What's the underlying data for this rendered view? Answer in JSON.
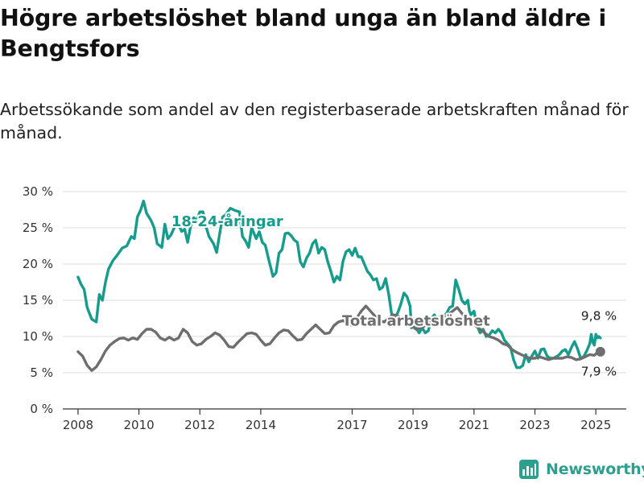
{
  "title": "Högre arbetslöshet bland unga än bland äldre i Bengtsfors",
  "subtitle": "Arbetssökande som andel av den registerbaserade arbetskraften månad för månad.",
  "logo": {
    "text": "Newsworthy"
  },
  "colors": {
    "youth": "#169c8c",
    "total": "#6e6e6e",
    "grid": "#dcdcdc",
    "axis": "#333333"
  },
  "chart_data": {
    "type": "line",
    "title": "Högre arbetslöshet bland unga än bland äldre i Bengtsfors",
    "subtitle": "Arbetssökande som andel av den registerbaserade arbetskraften månad för månad.",
    "xlim": [
      2007.5,
      2026
    ],
    "ylim": [
      0,
      30
    ],
    "x_ticks": [
      2008,
      2010,
      2012,
      2014,
      2017,
      2019,
      2021,
      2023,
      2025
    ],
    "x_tick_labels": [
      "2008",
      "2010",
      "2012",
      "2014",
      "2017",
      "2019",
      "2021",
      "2023",
      "2025"
    ],
    "y_ticks": [
      0,
      5,
      10,
      15,
      20,
      25,
      30
    ],
    "y_tick_labels": [
      "0 %",
      "5 %",
      "10 %",
      "15 %",
      "20 %",
      "25 %",
      "30 %"
    ],
    "grid": "horizontal",
    "series": [
      {
        "name": "18-24-åringar",
        "label_at": [
          2012.9,
          25.2
        ],
        "end_label": "9,8 %",
        "values": [
          [
            2008.0,
            18.2
          ],
          [
            2008.1,
            17.2
          ],
          [
            2008.2,
            16.5
          ],
          [
            2008.3,
            14.0
          ],
          [
            2008.45,
            12.4
          ],
          [
            2008.6,
            12.0
          ],
          [
            2008.7,
            15.8
          ],
          [
            2008.8,
            15.0
          ],
          [
            2008.9,
            17.5
          ],
          [
            2009.0,
            19.3
          ],
          [
            2009.15,
            20.5
          ],
          [
            2009.3,
            21.3
          ],
          [
            2009.45,
            22.2
          ],
          [
            2009.6,
            22.5
          ],
          [
            2009.75,
            23.8
          ],
          [
            2009.85,
            23.5
          ],
          [
            2009.95,
            26.5
          ],
          [
            2010.05,
            27.4
          ],
          [
            2010.15,
            28.7
          ],
          [
            2010.25,
            27.0
          ],
          [
            2010.4,
            26.0
          ],
          [
            2010.5,
            25.0
          ],
          [
            2010.6,
            22.8
          ],
          [
            2010.75,
            22.3
          ],
          [
            2010.85,
            25.5
          ],
          [
            2010.95,
            23.5
          ],
          [
            2011.05,
            24.0
          ],
          [
            2011.2,
            25.4
          ],
          [
            2011.3,
            25.5
          ],
          [
            2011.4,
            24.5
          ],
          [
            2011.5,
            24.8
          ],
          [
            2011.6,
            23.0
          ],
          [
            2011.7,
            25.3
          ],
          [
            2011.8,
            26.4
          ],
          [
            2011.9,
            26.0
          ],
          [
            2012.0,
            27.2
          ],
          [
            2012.1,
            27.2
          ],
          [
            2012.2,
            25.2
          ],
          [
            2012.3,
            23.8
          ],
          [
            2012.45,
            22.8
          ],
          [
            2012.55,
            21.6
          ],
          [
            2012.65,
            24.2
          ],
          [
            2012.75,
            26.5
          ],
          [
            2012.85,
            26.8
          ],
          [
            2013.0,
            27.7
          ],
          [
            2013.15,
            27.4
          ],
          [
            2013.3,
            27.2
          ],
          [
            2013.4,
            23.8
          ],
          [
            2013.5,
            23.2
          ],
          [
            2013.6,
            22.3
          ],
          [
            2013.7,
            25.0
          ],
          [
            2013.85,
            23.5
          ],
          [
            2013.95,
            24.5
          ],
          [
            2014.05,
            23.0
          ],
          [
            2014.15,
            22.6
          ],
          [
            2014.25,
            20.8
          ],
          [
            2014.4,
            18.3
          ],
          [
            2014.5,
            18.8
          ],
          [
            2014.6,
            21.5
          ],
          [
            2014.7,
            22.0
          ],
          [
            2014.8,
            24.2
          ],
          [
            2014.9,
            24.3
          ],
          [
            2015.0,
            23.9
          ],
          [
            2015.1,
            23.3
          ],
          [
            2015.2,
            23.0
          ],
          [
            2015.3,
            20.3
          ],
          [
            2015.4,
            19.6
          ],
          [
            2015.5,
            20.8
          ],
          [
            2015.6,
            21.5
          ],
          [
            2015.7,
            22.8
          ],
          [
            2015.8,
            23.3
          ],
          [
            2015.9,
            21.5
          ],
          [
            2016.0,
            22.3
          ],
          [
            2016.1,
            22.0
          ],
          [
            2016.2,
            20.3
          ],
          [
            2016.3,
            19.0
          ],
          [
            2016.4,
            17.5
          ],
          [
            2016.5,
            18.3
          ],
          [
            2016.6,
            17.8
          ],
          [
            2016.7,
            20.4
          ],
          [
            2016.8,
            21.7
          ],
          [
            2016.9,
            22.0
          ],
          [
            2017.0,
            21.2
          ],
          [
            2017.1,
            22.2
          ],
          [
            2017.2,
            21.0
          ],
          [
            2017.3,
            21.0
          ],
          [
            2017.4,
            20.0
          ],
          [
            2017.5,
            19.0
          ],
          [
            2017.6,
            18.5
          ],
          [
            2017.7,
            17.8
          ],
          [
            2017.8,
            18.0
          ],
          [
            2017.9,
            16.5
          ],
          [
            2018.0,
            16.8
          ],
          [
            2018.1,
            18.0
          ],
          [
            2018.2,
            15.8
          ],
          [
            2018.3,
            13.0
          ],
          [
            2018.4,
            12.5
          ],
          [
            2018.5,
            13.3
          ],
          [
            2018.6,
            14.5
          ],
          [
            2018.7,
            16.0
          ],
          [
            2018.8,
            15.5
          ],
          [
            2018.9,
            14.2
          ],
          [
            2018.95,
            11.2
          ],
          [
            2019.0,
            12.5
          ],
          [
            2019.1,
            11.2
          ],
          [
            2019.2,
            10.5
          ],
          [
            2019.3,
            11.2
          ],
          [
            2019.4,
            10.5
          ],
          [
            2019.5,
            10.8
          ],
          [
            2019.6,
            12.5
          ],
          [
            2019.7,
            13.0
          ],
          [
            2019.8,
            12.0
          ],
          [
            2019.9,
            13.0
          ],
          [
            2020.0,
            12.8
          ],
          [
            2020.1,
            13.2
          ],
          [
            2020.2,
            14.0
          ],
          [
            2020.3,
            14.2
          ],
          [
            2020.4,
            17.8
          ],
          [
            2020.5,
            16.5
          ],
          [
            2020.6,
            15.0
          ],
          [
            2020.7,
            14.5
          ],
          [
            2020.8,
            15.0
          ],
          [
            2020.85,
            13.5
          ],
          [
            2020.9,
            13.0
          ],
          [
            2021.0,
            13.5
          ],
          [
            2021.1,
            11.5
          ],
          [
            2021.2,
            10.5
          ],
          [
            2021.3,
            11.0
          ],
          [
            2021.4,
            10.0
          ],
          [
            2021.5,
            10.2
          ],
          [
            2021.6,
            10.8
          ],
          [
            2021.7,
            10.5
          ],
          [
            2021.8,
            11.0
          ],
          [
            2021.9,
            10.5
          ],
          [
            2022.0,
            9.5
          ],
          [
            2022.1,
            9.0
          ],
          [
            2022.2,
            8.5
          ],
          [
            2022.3,
            6.8
          ],
          [
            2022.4,
            5.7
          ],
          [
            2022.5,
            5.7
          ],
          [
            2022.6,
            6.0
          ],
          [
            2022.7,
            7.5
          ],
          [
            2022.8,
            6.5
          ],
          [
            2022.9,
            7.3
          ],
          [
            2023.0,
            8.0
          ],
          [
            2023.1,
            7.0
          ],
          [
            2023.2,
            8.2
          ],
          [
            2023.3,
            8.3
          ],
          [
            2023.4,
            7.3
          ],
          [
            2023.5,
            7.0
          ],
          [
            2023.6,
            7.0
          ],
          [
            2023.7,
            7.2
          ],
          [
            2023.8,
            7.5
          ],
          [
            2023.9,
            8.0
          ],
          [
            2024.0,
            8.2
          ],
          [
            2024.1,
            7.5
          ],
          [
            2024.2,
            8.5
          ],
          [
            2024.3,
            9.3
          ],
          [
            2024.4,
            8.3
          ],
          [
            2024.5,
            7.0
          ],
          [
            2024.6,
            7.2
          ],
          [
            2024.7,
            8.0
          ],
          [
            2024.8,
            9.0
          ],
          [
            2024.85,
            10.3
          ],
          [
            2024.9,
            9.2
          ],
          [
            2024.95,
            8.8
          ],
          [
            2025.0,
            10.3
          ],
          [
            2025.05,
            9.8
          ],
          [
            2025.1,
            10.0
          ],
          [
            2025.15,
            9.8
          ]
        ]
      },
      {
        "name": "Total arbetslöshet",
        "label_at": [
          2019.1,
          11.5
        ],
        "end_label": "7,9 %",
        "values": [
          [
            2008.0,
            7.9
          ],
          [
            2008.15,
            7.3
          ],
          [
            2008.3,
            6.0
          ],
          [
            2008.45,
            5.3
          ],
          [
            2008.6,
            5.8
          ],
          [
            2008.75,
            6.8
          ],
          [
            2008.9,
            8.0
          ],
          [
            2009.05,
            8.8
          ],
          [
            2009.2,
            9.3
          ],
          [
            2009.35,
            9.7
          ],
          [
            2009.5,
            9.8
          ],
          [
            2009.65,
            9.5
          ],
          [
            2009.8,
            9.8
          ],
          [
            2009.95,
            9.6
          ],
          [
            2010.1,
            10.4
          ],
          [
            2010.25,
            11.0
          ],
          [
            2010.4,
            11.0
          ],
          [
            2010.55,
            10.6
          ],
          [
            2010.7,
            9.8
          ],
          [
            2010.85,
            9.5
          ],
          [
            2011.0,
            9.9
          ],
          [
            2011.15,
            9.5
          ],
          [
            2011.3,
            9.8
          ],
          [
            2011.45,
            11.0
          ],
          [
            2011.6,
            10.5
          ],
          [
            2011.75,
            9.3
          ],
          [
            2011.9,
            8.8
          ],
          [
            2012.05,
            9.0
          ],
          [
            2012.2,
            9.6
          ],
          [
            2012.35,
            10.0
          ],
          [
            2012.5,
            10.5
          ],
          [
            2012.65,
            10.2
          ],
          [
            2012.8,
            9.5
          ],
          [
            2012.95,
            8.6
          ],
          [
            2013.1,
            8.5
          ],
          [
            2013.25,
            9.2
          ],
          [
            2013.4,
            9.8
          ],
          [
            2013.55,
            10.4
          ],
          [
            2013.7,
            10.5
          ],
          [
            2013.85,
            10.3
          ],
          [
            2014.0,
            9.5
          ],
          [
            2014.15,
            8.8
          ],
          [
            2014.3,
            9.0
          ],
          [
            2014.45,
            9.8
          ],
          [
            2014.6,
            10.5
          ],
          [
            2014.75,
            10.9
          ],
          [
            2014.9,
            10.8
          ],
          [
            2015.05,
            10.1
          ],
          [
            2015.2,
            9.5
          ],
          [
            2015.35,
            9.6
          ],
          [
            2015.5,
            10.4
          ],
          [
            2015.65,
            11.0
          ],
          [
            2015.8,
            11.6
          ],
          [
            2015.95,
            11.0
          ],
          [
            2016.1,
            10.4
          ],
          [
            2016.25,
            10.5
          ],
          [
            2016.4,
            11.5
          ],
          [
            2016.55,
            12.0
          ],
          [
            2016.7,
            12.2
          ],
          [
            2016.85,
            11.8
          ],
          [
            2017.0,
            11.5
          ],
          [
            2017.15,
            12.5
          ],
          [
            2017.3,
            13.5
          ],
          [
            2017.45,
            14.2
          ],
          [
            2017.6,
            13.5
          ],
          [
            2017.75,
            12.8
          ],
          [
            2017.9,
            12.2
          ],
          [
            2018.05,
            12.0
          ],
          [
            2018.2,
            12.5
          ],
          [
            2018.35,
            13.0
          ],
          [
            2018.5,
            12.8
          ],
          [
            2018.65,
            12.5
          ],
          [
            2018.8,
            12.0
          ],
          [
            2018.95,
            11.5
          ],
          [
            2019.1,
            11.0
          ],
          [
            2019.25,
            11.2
          ],
          [
            2019.4,
            11.5
          ],
          [
            2019.55,
            11.8
          ],
          [
            2019.7,
            12.2
          ],
          [
            2019.85,
            12.5
          ],
          [
            2020.0,
            12.5
          ],
          [
            2020.15,
            13.0
          ],
          [
            2020.3,
            13.5
          ],
          [
            2020.45,
            14.0
          ],
          [
            2020.6,
            13.2
          ],
          [
            2020.75,
            12.5
          ],
          [
            2020.9,
            12.0
          ],
          [
            2021.05,
            11.5
          ],
          [
            2021.2,
            11.0
          ],
          [
            2021.35,
            10.5
          ],
          [
            2021.5,
            10.0
          ],
          [
            2021.65,
            9.8
          ],
          [
            2021.8,
            9.5
          ],
          [
            2021.95,
            9.0
          ],
          [
            2022.1,
            8.8
          ],
          [
            2022.25,
            8.2
          ],
          [
            2022.4,
            7.8
          ],
          [
            2022.55,
            7.5
          ],
          [
            2022.7,
            7.2
          ],
          [
            2022.85,
            7.0
          ],
          [
            2023.0,
            7.0
          ],
          [
            2023.15,
            7.2
          ],
          [
            2023.3,
            7.0
          ],
          [
            2023.45,
            6.8
          ],
          [
            2023.6,
            7.0
          ],
          [
            2023.75,
            7.0
          ],
          [
            2023.9,
            7.0
          ],
          [
            2024.05,
            7.2
          ],
          [
            2024.2,
            7.1
          ],
          [
            2024.35,
            6.8
          ],
          [
            2024.5,
            6.9
          ],
          [
            2024.65,
            7.2
          ],
          [
            2024.8,
            7.5
          ],
          [
            2024.95,
            7.4
          ],
          [
            2025.05,
            7.8
          ],
          [
            2025.15,
            7.9
          ]
        ]
      }
    ]
  }
}
